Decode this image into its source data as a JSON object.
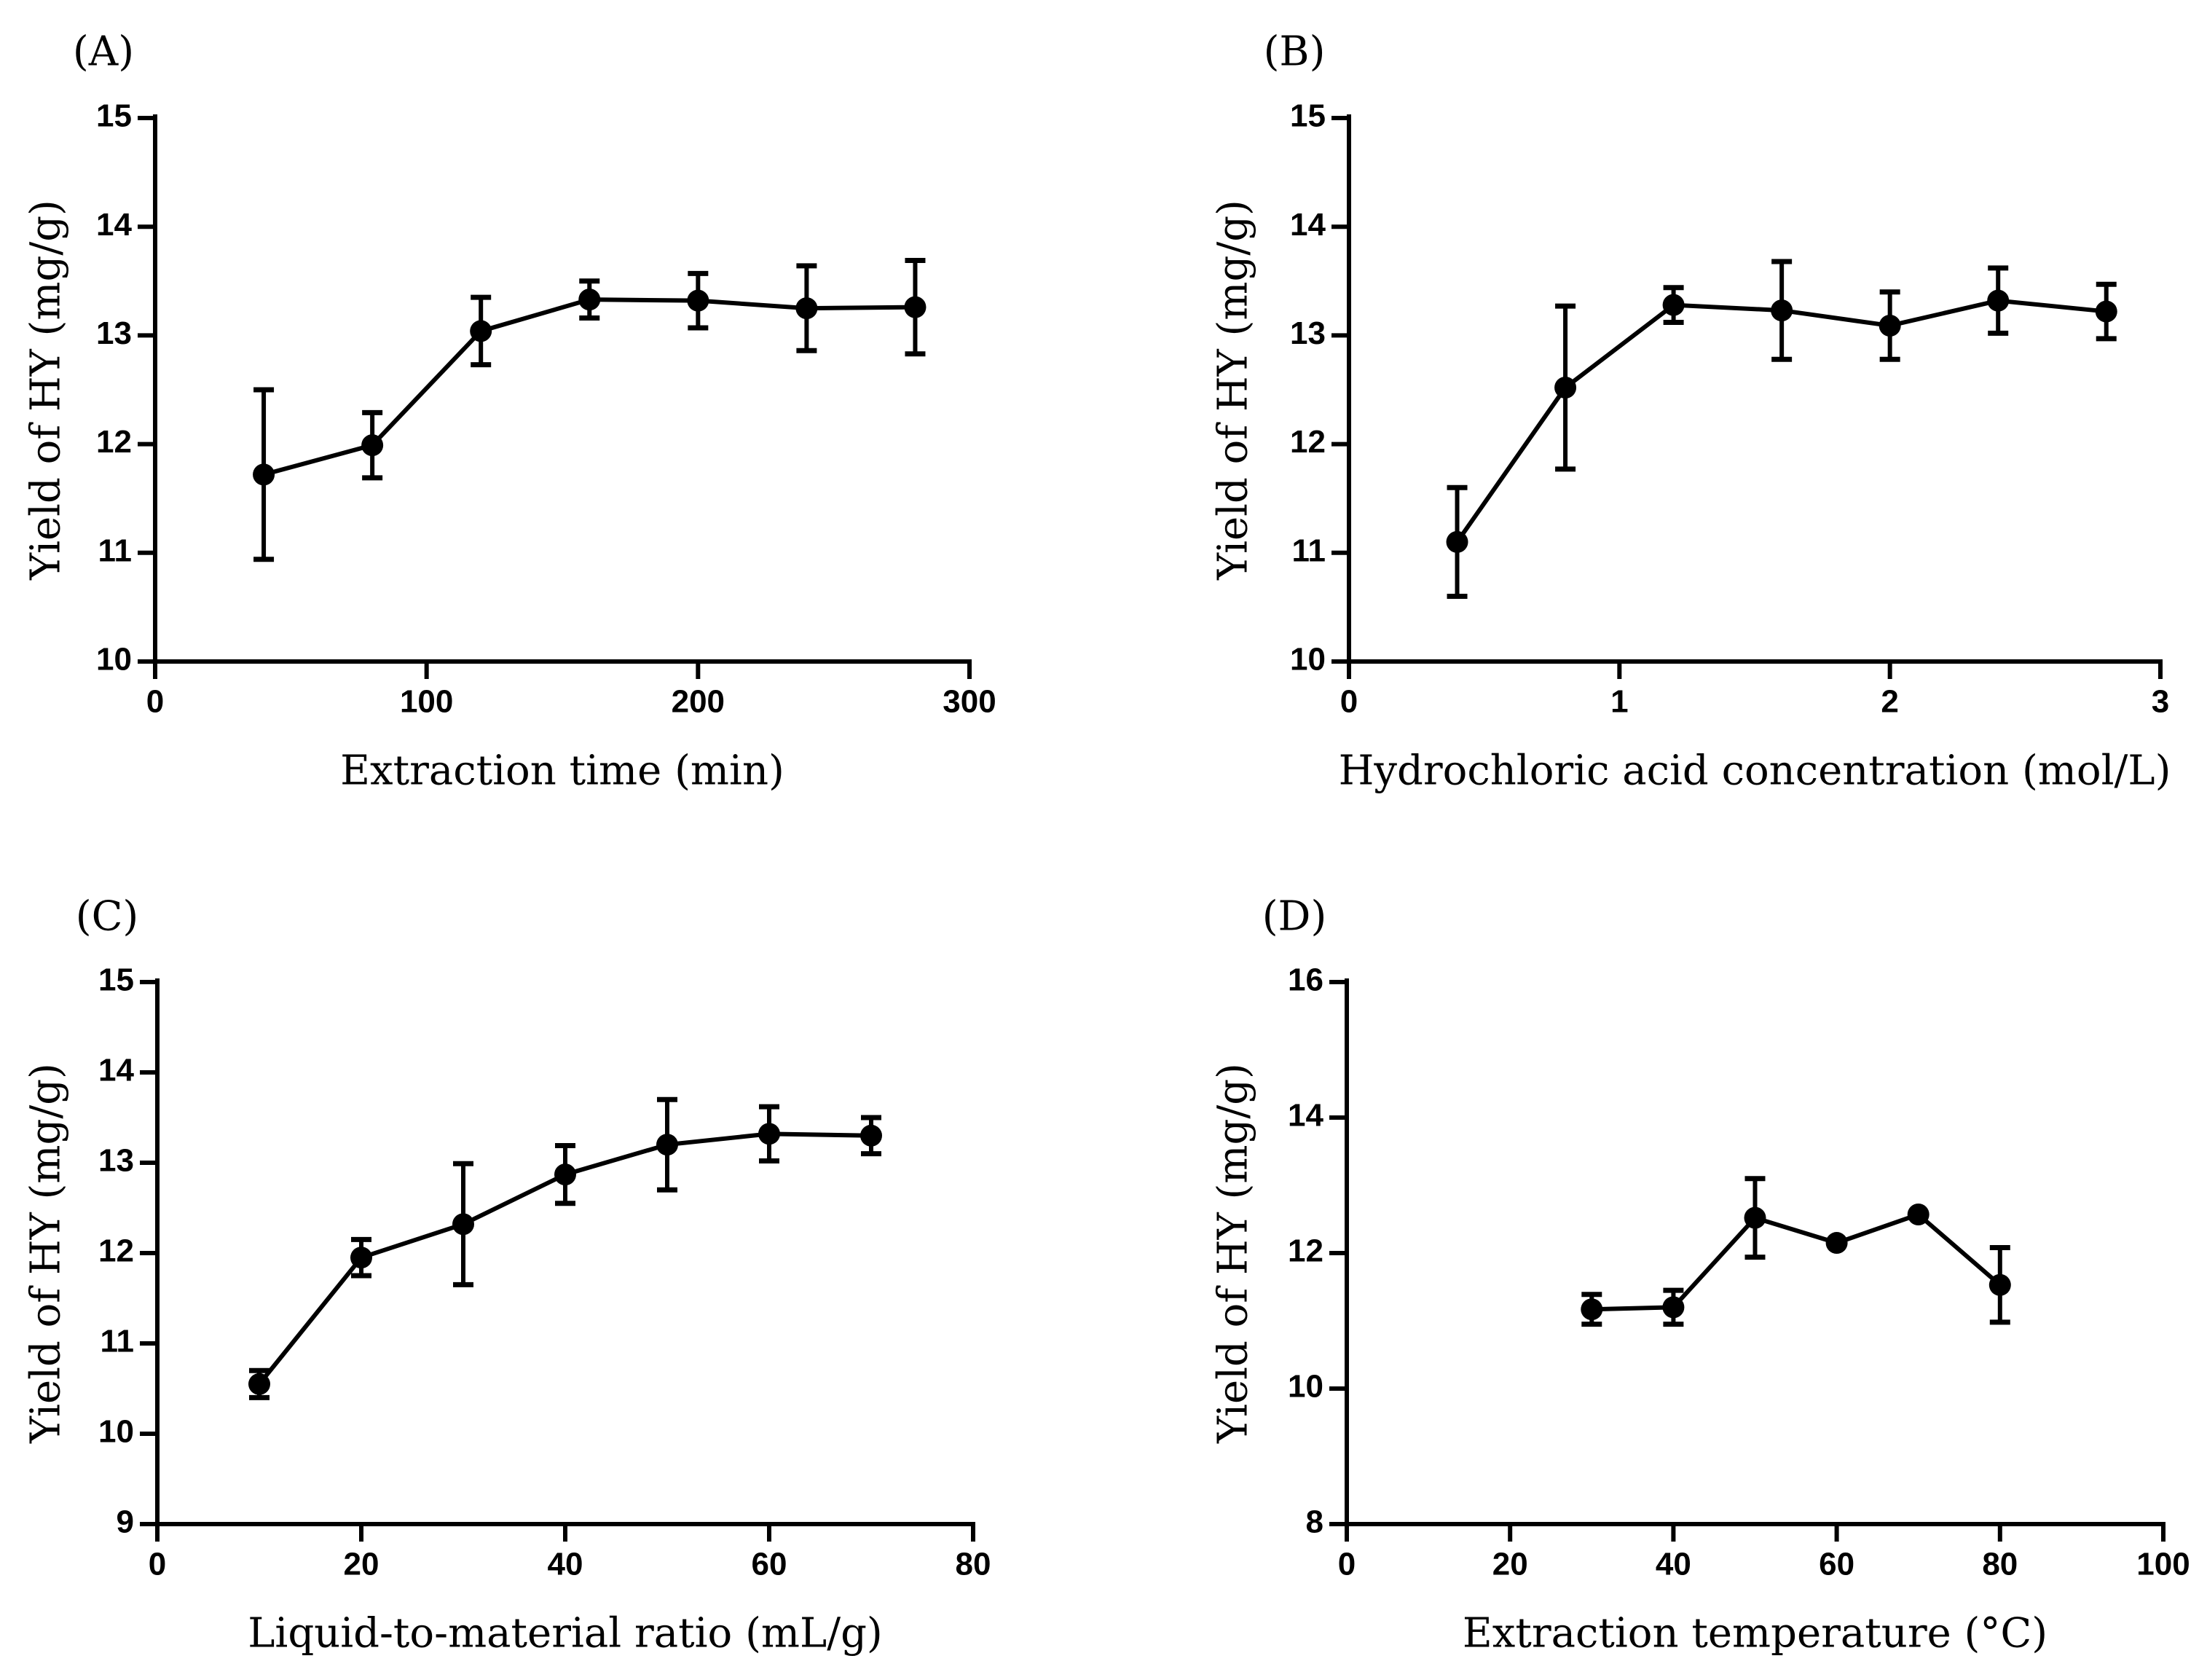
{
  "chart_data": [
    {
      "panel": "(A)",
      "type": "line",
      "title": "",
      "xlabel": "Extraction time (min)",
      "ylabel": "Yield of HY  (mg/g)",
      "xlim": [
        0,
        300
      ],
      "ylim": [
        10,
        15
      ],
      "xticks": [
        0,
        100,
        200,
        300
      ],
      "yticks": [
        10,
        11,
        12,
        13,
        14,
        15
      ],
      "grid": false,
      "x": [
        40,
        80,
        120,
        160,
        200,
        240,
        280
      ],
      "y": [
        11.72,
        11.99,
        13.04,
        13.33,
        13.32,
        13.25,
        13.26
      ],
      "err": [
        0.78,
        0.3,
        0.31,
        0.17,
        0.25,
        0.39,
        0.43
      ]
    },
    {
      "panel": "(B)",
      "type": "line",
      "title": "",
      "xlabel": "Hydrochloric acid concentration (mol/L)",
      "ylabel": "Yield of HY  (mg/g)",
      "xlim": [
        0,
        3
      ],
      "ylim": [
        10,
        15
      ],
      "xticks": [
        0,
        1,
        2,
        3
      ],
      "yticks": [
        10,
        11,
        12,
        13,
        14,
        15
      ],
      "grid": false,
      "x": [
        0.4,
        0.8,
        1.2,
        1.6,
        2.0,
        2.4,
        2.8
      ],
      "y": [
        11.1,
        12.52,
        13.28,
        13.23,
        13.09,
        13.32,
        13.22
      ],
      "err": [
        0.5,
        0.75,
        0.16,
        0.45,
        0.31,
        0.3,
        0.25
      ]
    },
    {
      "panel": "(C)",
      "type": "line",
      "title": "",
      "xlabel": "Liquid-to-material ratio (mL/g)",
      "ylabel": "Yield of HY  (mg/g)",
      "xlim": [
        0,
        80
      ],
      "ylim": [
        9,
        15
      ],
      "xticks": [
        0,
        20,
        40,
        60,
        80
      ],
      "yticks": [
        9,
        10,
        11,
        12,
        13,
        14,
        15
      ],
      "grid": false,
      "x": [
        10,
        20,
        30,
        40,
        50,
        60,
        70
      ],
      "y": [
        10.55,
        11.95,
        12.32,
        12.87,
        13.2,
        13.32,
        13.3
      ],
      "err": [
        0.15,
        0.2,
        0.67,
        0.32,
        0.5,
        0.3,
        0.2
      ]
    },
    {
      "panel": "(D)",
      "type": "line",
      "title": "",
      "xlabel": "Extraction temperature (°C)",
      "ylabel": "Yield of HY  (mg/g)",
      "xlim": [
        0,
        100
      ],
      "ylim": [
        8,
        16
      ],
      "xticks": [
        0,
        20,
        40,
        60,
        80,
        100
      ],
      "yticks": [
        8,
        10,
        12,
        14,
        16
      ],
      "grid": false,
      "x": [
        30,
        40,
        50,
        60,
        70,
        80
      ],
      "y": [
        11.17,
        11.2,
        12.52,
        12.15,
        12.57,
        11.53
      ],
      "err": [
        0.22,
        0.25,
        0.58,
        0.0,
        0.0,
        0.55
      ]
    }
  ]
}
